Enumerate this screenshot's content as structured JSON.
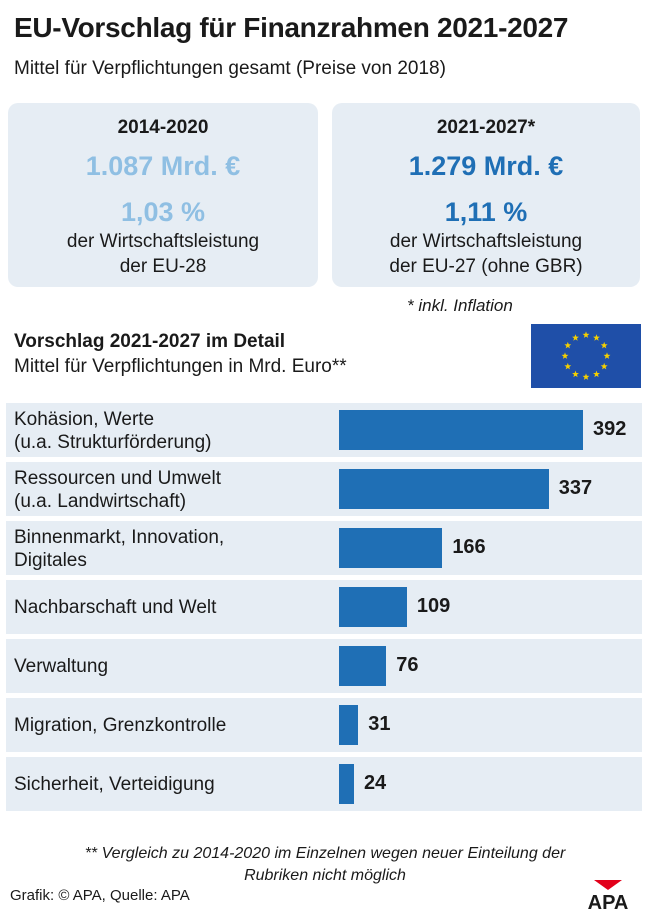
{
  "header": {
    "title": "EU-Vorschlag für Finanzrahmen 2021-2027",
    "subtitle": "Mittel für Verpflichtungen gesamt (Preise von 2018)"
  },
  "comparison": {
    "left": {
      "period": "2014-2020",
      "amount": "1.087 Mrd. €",
      "percent": "1,03 %",
      "desc_line1": "der Wirtschaftsleistung",
      "desc_line2": "der EU-28",
      "color": "#8fbfe3"
    },
    "right": {
      "period": "2021-2027*",
      "amount": "1.279 Mrd. €",
      "percent": "1,11 %",
      "desc_line1": "der Wirtschaftsleistung",
      "desc_line2": "der EU-27 (ohne GBR)",
      "color": "#1f6fb5"
    },
    "note": "* inkl. Inflation"
  },
  "detail": {
    "title": "Vorschlag 2021-2027 im Detail",
    "subtitle": "Mittel für Verpflichtungen in Mrd. Euro**",
    "flag_icon": "eu-flag-icon"
  },
  "chart_data": {
    "type": "bar",
    "orientation": "horizontal",
    "title": "Vorschlag 2021-2027 im Detail",
    "ylabel": "Mittel für Verpflichtungen in Mrd. Euro**",
    "categories": [
      "Kohäsion, Werte (u.a. Strukturförderung)",
      "Ressourcen und Umwelt (u.a. Landwirtschaft)",
      "Binnenmarkt, Innovation, Digitales",
      "Nachbarschaft und Welt",
      "Verwaltung",
      "Migration, Grenzkontrolle",
      "Sicherheit, Verteidigung"
    ],
    "label_lines": [
      [
        "Kohäsion, Werte",
        "(u.a. Strukturförderung)"
      ],
      [
        "Ressourcen und Umwelt",
        "(u.a. Landwirtschaft)"
      ],
      [
        "Binnenmarkt, Innovation,",
        "Digitales"
      ],
      [
        "Nachbarschaft und Welt"
      ],
      [
        "Verwaltung"
      ],
      [
        "Migration, Grenzkontrolle"
      ],
      [
        "Sicherheit, Verteidigung"
      ]
    ],
    "values": [
      392,
      337,
      166,
      109,
      76,
      31,
      24
    ],
    "xlim": [
      0,
      392
    ],
    "bar_color": "#1f6fb5",
    "row_bg_color": "#e6edf4"
  },
  "footer": {
    "note_line1": "** Vergleich zu 2014-2020 im Einzelnen wegen neuer Einteilung der",
    "note_line2": "Rubriken nicht möglich",
    "credit": "Grafik: © APA, Quelle: APA",
    "logo_text": "APA"
  }
}
